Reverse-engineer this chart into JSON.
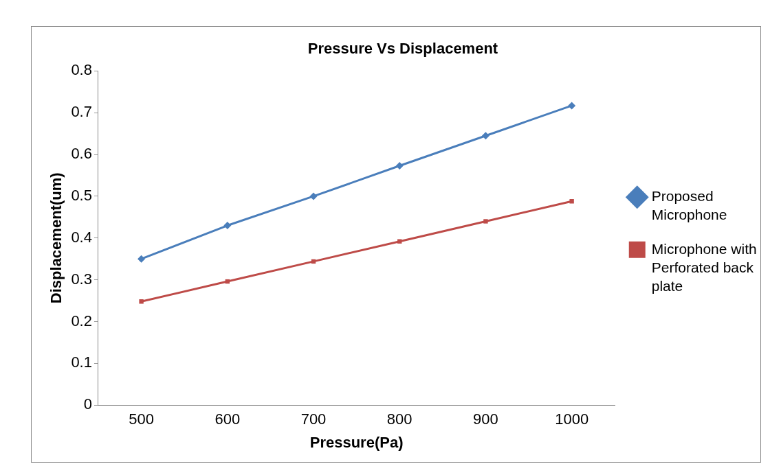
{
  "chart_data": {
    "type": "line",
    "title": "Pressure Vs Displacement",
    "xlabel": "Pressure(Pa)",
    "ylabel": "Displacement(um)",
    "categories": [
      "500",
      "600",
      "700",
      "800",
      "900",
      "1000"
    ],
    "series": [
      {
        "name": "Proposed Microphone",
        "color": "#4a7ebb",
        "marker": "diamond",
        "values": [
          0.35,
          0.43,
          0.5,
          0.573,
          0.645,
          0.717
        ]
      },
      {
        "name": "Microphone with Perforated back plate",
        "color": "#be4b48",
        "marker": "square",
        "values": [
          0.248,
          0.296,
          0.344,
          0.392,
          0.44,
          0.488
        ]
      }
    ],
    "ylim": [
      0,
      0.8
    ],
    "yticks": [
      0,
      0.1,
      0.2,
      0.3,
      0.4,
      0.5,
      0.6,
      0.7,
      0.8
    ],
    "grid": false,
    "legend": "right",
    "line_style": "solid"
  }
}
